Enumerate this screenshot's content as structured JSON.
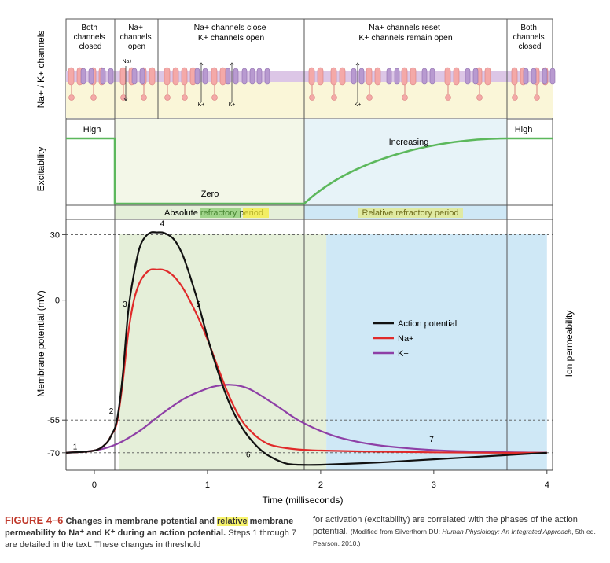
{
  "figure": {
    "label": "FIGURE 4–6",
    "title_part1": "Changes in membrane potential and ",
    "title_highlight": "relative",
    "title_part2": " membrane permeability to Na⁺ and K⁺ during an action potential.",
    "caption_left": " Steps 1 through 7 are detailed in the text. These changes in threshold",
    "caption_right_1": "for activation (excitability) are correlated with the phases of the action potential. ",
    "caption_right_2": "(Modified from Silverthorn DU: ",
    "caption_right_3": "Human Physiology: An Integrated Approach",
    "caption_right_4": ", 5th ed. Pearson, 2010.)"
  },
  "channels_panel": {
    "side_label": "Na+ / K+ channels",
    "phases": [
      "Both channels closed",
      "Na+ channels open",
      "Na+ channels close K+ channels open",
      "Na+ channels reset K+ channels remain open",
      "Both channels closed"
    ],
    "ion_na": "Na+",
    "ion_k": "K+"
  },
  "excitability_panel": {
    "side_label": "Excitability",
    "high_left": "High",
    "zero": "Zero",
    "increasing": "Increasing",
    "high_right": "High"
  },
  "refractory": {
    "absolute_1": "Absolute ",
    "absolute_2": "refractory",
    "absolute_3": "period",
    "relative_1": "Relative",
    "relative_2": "refractory",
    "relative_3": "period"
  },
  "chart_data": {
    "type": "line",
    "xlabel": "Time (milliseconds)",
    "ylabel": "Membrane potential (mV)",
    "y2label": "Ion permeability",
    "xlim": [
      -0.25,
      4.05
    ],
    "ylim": [
      -78,
      37
    ],
    "x_ticks": [
      0,
      1,
      2,
      3,
      4
    ],
    "y_ticks": [
      30,
      0,
      -55,
      -70
    ],
    "colors": {
      "action": "#111111",
      "na": "#e02a2a",
      "k": "#8e3fa6",
      "absolute_bg": "#e5efd9",
      "relative_bg": "#cfe8f6"
    },
    "regions": {
      "absolute": [
        0.22,
        2.05
      ],
      "relative": [
        2.05,
        4.0
      ]
    },
    "legend_position": "center-right",
    "series": [
      {
        "name": "Action potential",
        "x": [
          -0.25,
          0.0,
          0.1,
          0.15,
          0.2,
          0.25,
          0.3,
          0.35,
          0.4,
          0.45,
          0.5,
          0.55,
          0.6,
          0.65,
          0.7,
          0.75,
          0.8,
          0.9,
          1.0,
          1.1,
          1.2,
          1.3,
          1.4,
          1.5,
          1.6,
          1.7,
          1.8,
          2.0,
          2.5,
          3.0,
          3.5,
          4.0
        ],
        "y": [
          -70,
          -69,
          -66,
          -62,
          -55,
          -35,
          -5,
          12,
          24,
          29,
          31,
          31,
          31,
          30,
          28,
          24,
          18,
          2,
          -17,
          -34,
          -48,
          -58,
          -65,
          -70,
          -73,
          -75,
          -75.5,
          -75.5,
          -74.5,
          -73,
          -71.5,
          -70
        ]
      },
      {
        "name": "Na+",
        "x": [
          -0.25,
          0.0,
          0.1,
          0.15,
          0.2,
          0.25,
          0.3,
          0.35,
          0.4,
          0.45,
          0.5,
          0.55,
          0.6,
          0.65,
          0.7,
          0.75,
          0.8,
          0.9,
          1.0,
          1.1,
          1.2,
          1.3,
          1.4,
          1.5,
          1.6,
          1.8,
          2.0,
          2.5,
          3.0,
          3.5,
          4.0
        ],
        "y": [
          -70,
          -69,
          -66,
          -62,
          -56,
          -38,
          -15,
          0,
          8,
          12,
          14,
          14,
          14,
          13,
          11,
          8,
          4,
          -6,
          -18,
          -32,
          -45,
          -55,
          -61,
          -65,
          -67,
          -68.5,
          -69,
          -69.5,
          -69.8,
          -70,
          -70
        ]
      },
      {
        "name": "K+",
        "x": [
          -0.25,
          0.0,
          0.2,
          0.4,
          0.6,
          0.8,
          1.0,
          1.1,
          1.2,
          1.3,
          1.4,
          1.6,
          1.8,
          2.0,
          2.2,
          2.5,
          3.0,
          3.5,
          4.0
        ],
        "y": [
          -70,
          -69,
          -66,
          -60,
          -52,
          -45,
          -40.5,
          -39.2,
          -38.8,
          -39.5,
          -41.5,
          -48,
          -55,
          -60,
          -63.5,
          -66.5,
          -68.8,
          -69.6,
          -70
        ]
      }
    ],
    "step_labels": [
      {
        "label": "1",
        "x": -0.17,
        "y": -68.5
      },
      {
        "label": "2",
        "x": 0.15,
        "y": -52
      },
      {
        "label": "3",
        "x": 0.27,
        "y": -3
      },
      {
        "label": "4",
        "x": 0.6,
        "y": 34
      },
      {
        "label": "5",
        "x": 0.92,
        "y": -3
      },
      {
        "label": "6",
        "x": 1.36,
        "y": -72
      },
      {
        "label": "7",
        "x": 2.98,
        "y": -65
      }
    ]
  }
}
